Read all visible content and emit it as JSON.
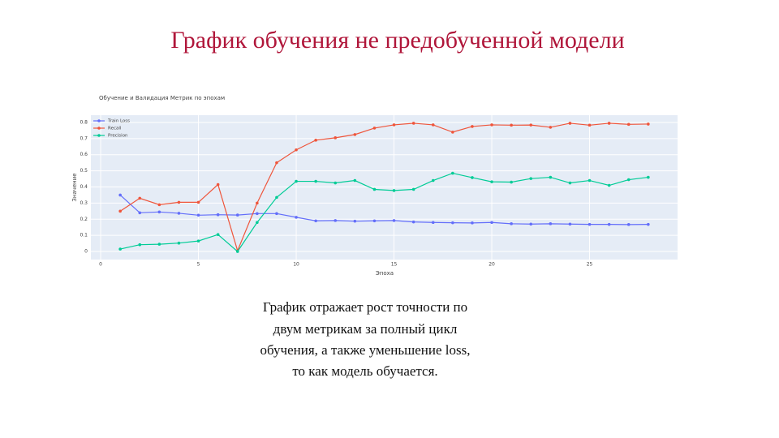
{
  "page_title": "График обучения не предобученной модели",
  "chart_data": {
    "type": "line",
    "title": "Обучение и Валидация Метрик по эпохам",
    "x_label": "Эпоха",
    "y_label": "Значение",
    "x": [
      1,
      2,
      3,
      4,
      5,
      6,
      7,
      8,
      9,
      10,
      11,
      12,
      13,
      14,
      15,
      16,
      17,
      18,
      19,
      20,
      21,
      22,
      23,
      24,
      25,
      26,
      27,
      28
    ],
    "series": [
      {
        "name": "Train Loss",
        "color": "#636efa",
        "values": [
          0.35,
          0.24,
          0.245,
          0.237,
          0.225,
          0.228,
          0.226,
          0.235,
          0.235,
          0.212,
          0.19,
          0.192,
          0.188,
          0.19,
          0.192,
          0.183,
          0.18,
          0.178,
          0.177,
          0.18,
          0.172,
          0.17,
          0.172,
          0.17,
          0.168,
          0.168,
          0.167,
          0.168
        ]
      },
      {
        "name": "Recall",
        "color": "#ef553b",
        "values": [
          0.25,
          0.33,
          0.29,
          0.305,
          0.305,
          0.415,
          0.005,
          0.3,
          0.55,
          0.63,
          0.69,
          0.705,
          0.725,
          0.765,
          0.785,
          0.795,
          0.785,
          0.74,
          0.775,
          0.785,
          0.783,
          0.784,
          0.77,
          0.795,
          0.783,
          0.795,
          0.788,
          0.79
        ]
      },
      {
        "name": "Precision",
        "color": "#00cc96",
        "values": [
          0.015,
          0.042,
          0.045,
          0.052,
          0.065,
          0.105,
          0.0,
          0.18,
          0.335,
          0.435,
          0.435,
          0.425,
          0.44,
          0.385,
          0.378,
          0.385,
          0.44,
          0.485,
          0.458,
          0.432,
          0.43,
          0.452,
          0.46,
          0.425,
          0.44,
          0.41,
          0.445,
          0.46
        ]
      }
    ],
    "xlim": [
      -0.5,
      29.5
    ],
    "ylim": [
      -0.05,
      0.845
    ],
    "xticks": [
      0,
      5,
      10,
      15,
      20,
      25
    ],
    "yticks": [
      0,
      0.1,
      0.2,
      0.3,
      0.4,
      0.5,
      0.6,
      0.7,
      0.8
    ],
    "grid": true,
    "legend": "top-left"
  },
  "caption": [
    "График отражает рост точности по",
    "двум метрикам за полный цикл",
    "обучения, а также уменьшение loss,",
    "то как модель обучается."
  ]
}
